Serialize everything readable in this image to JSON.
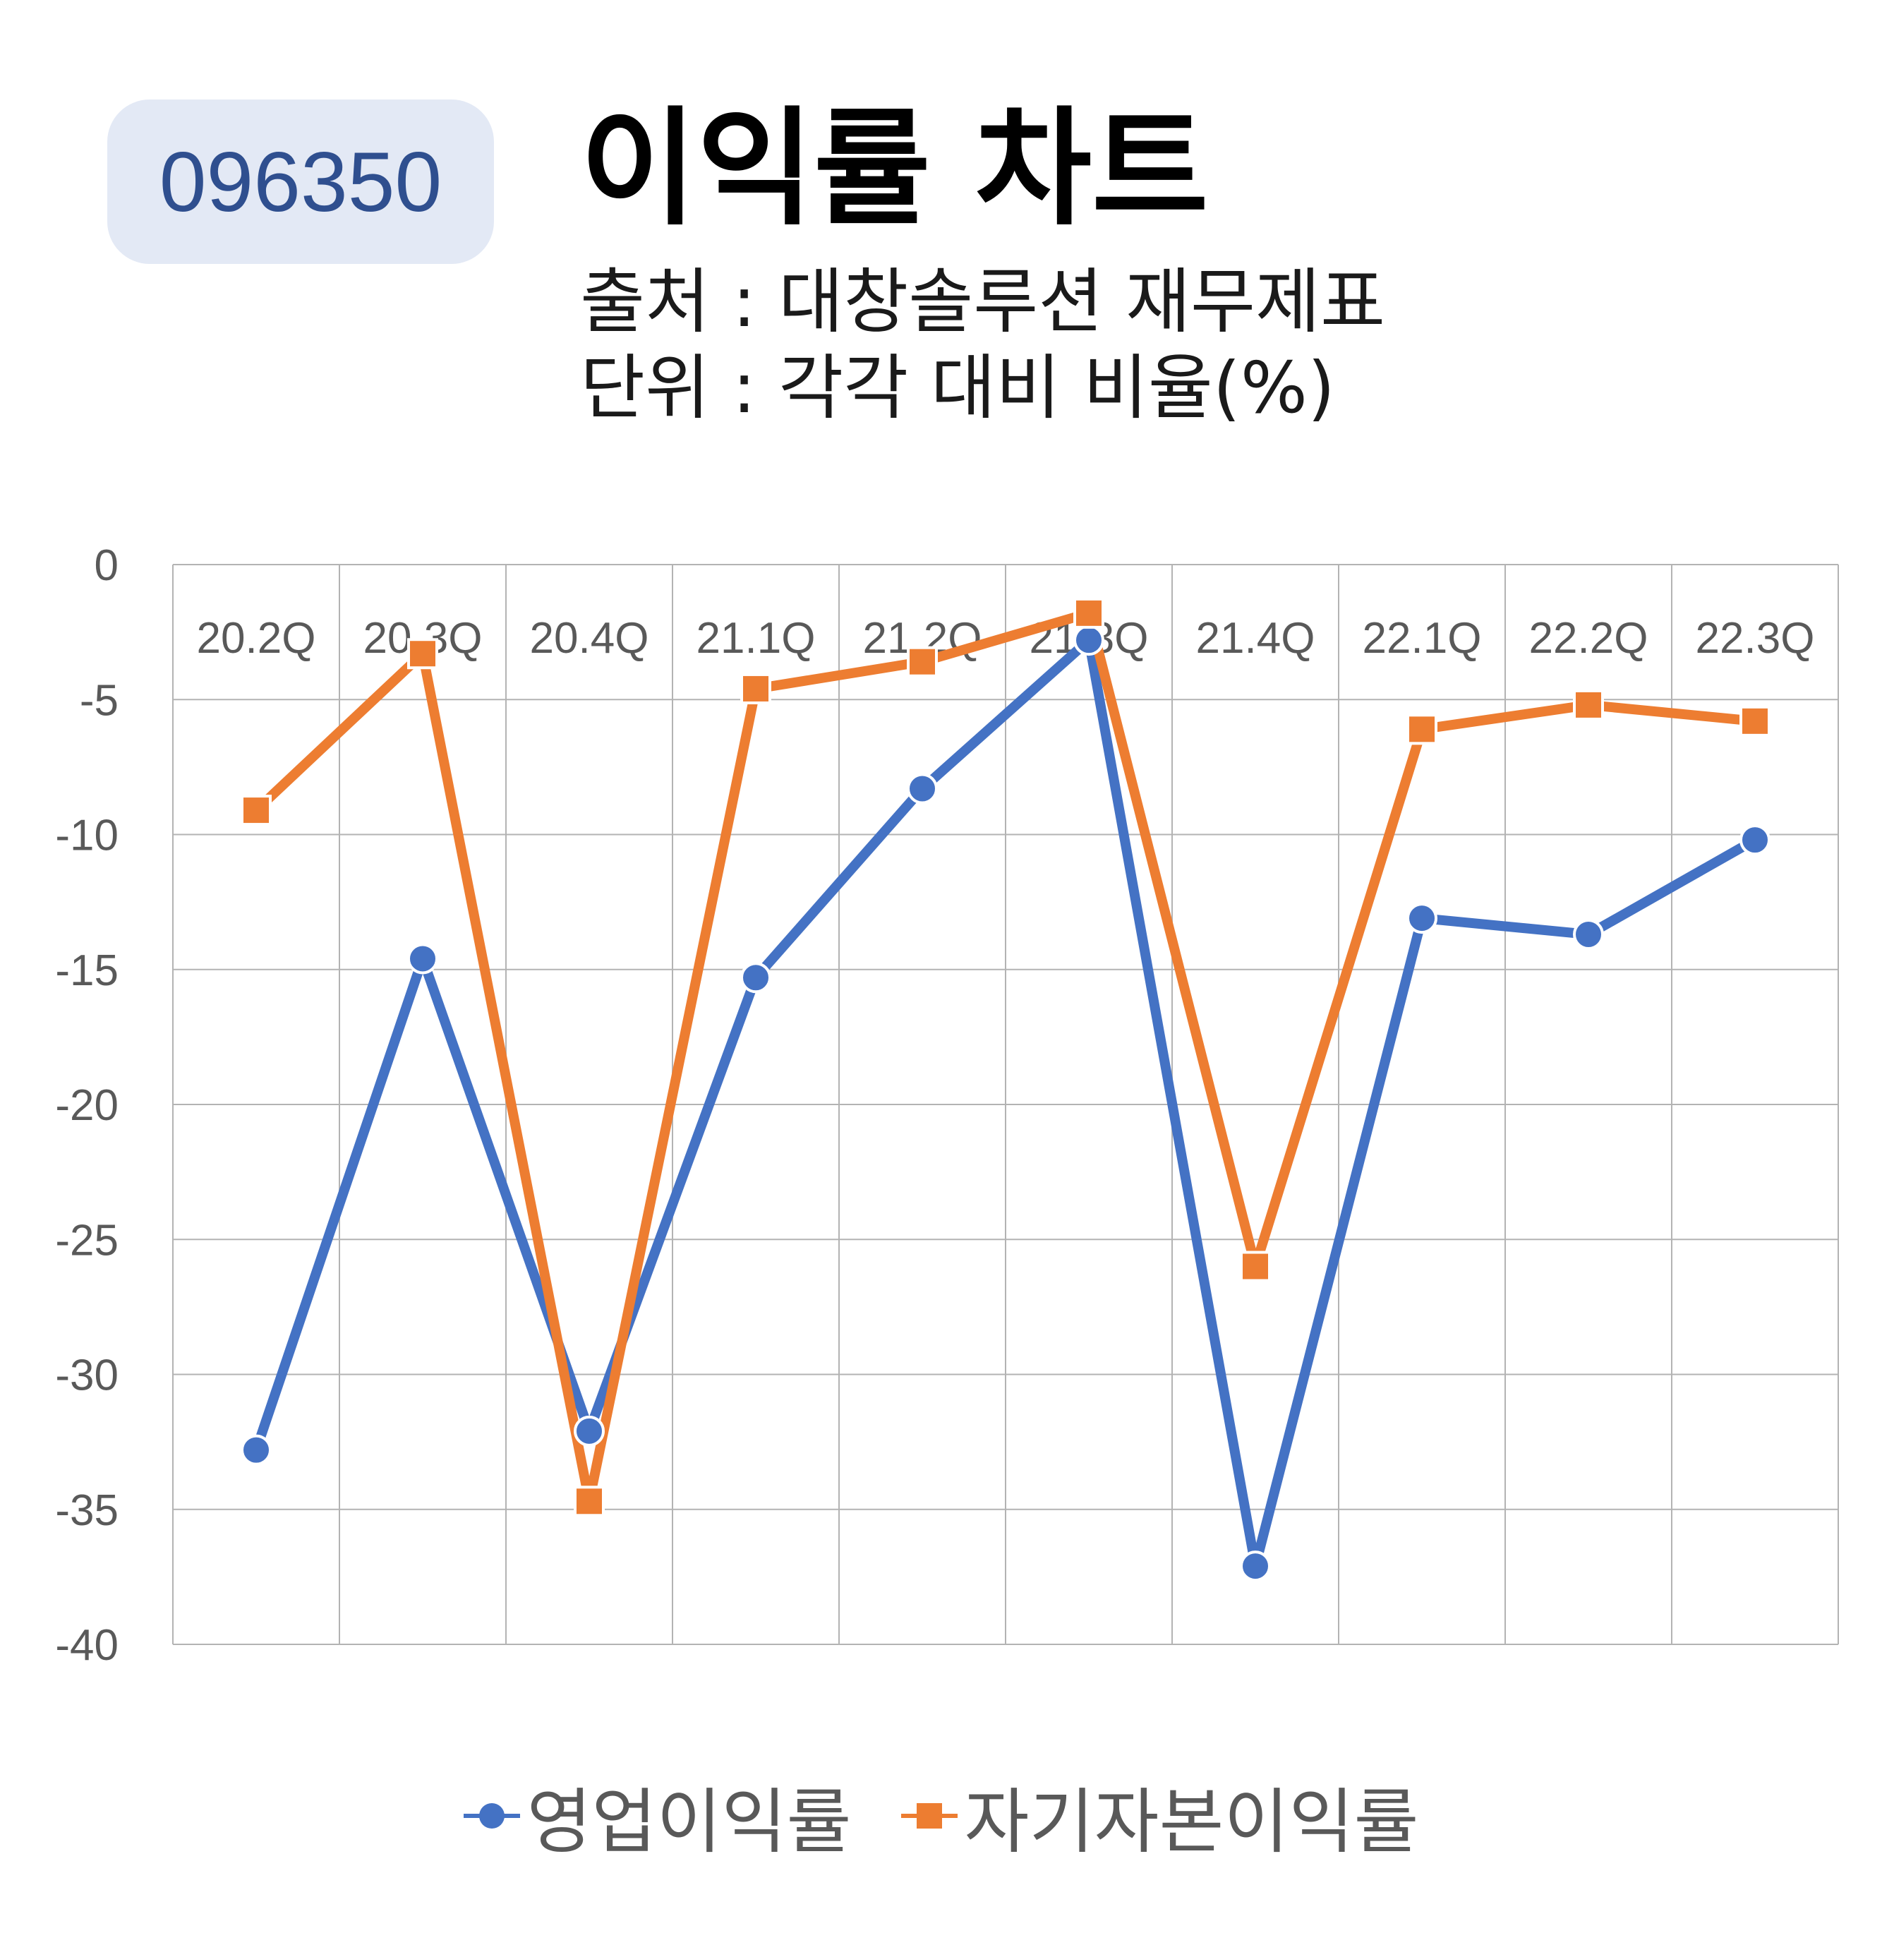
{
  "header": {
    "code": "096350",
    "title": "이익률 차트",
    "source": "출처 : 대창솔루션 재무제표",
    "unit": "단위 : 각각 대비 비율(%)"
  },
  "colors": {
    "series1": "#4472c4",
    "series2": "#ed7d31",
    "badge_bg": "#e3e9f5",
    "badge_text": "#2f4f8f",
    "grid": "#b3b3b3"
  },
  "chart_data": {
    "type": "line",
    "categories": [
      "20.2Q",
      "20.3Q",
      "20.4Q",
      "21.1Q",
      "21.2Q",
      "21.3Q",
      "21.4Q",
      "22.1Q",
      "22.2Q",
      "22.3Q"
    ],
    "series": [
      {
        "name": "영업이익률",
        "marker": "circle",
        "values": [
          -32.8,
          -14.6,
          -32.1,
          -15.3,
          -8.3,
          -2.8,
          -37.1,
          -13.1,
          -13.7,
          -10.2
        ]
      },
      {
        "name": "자기자본이익률",
        "marker": "square",
        "values": [
          -9.1,
          -3.3,
          -34.7,
          -4.6,
          -3.6,
          -1.8,
          -26.0,
          -6.1,
          -5.2,
          -5.8
        ]
      }
    ],
    "ylim": [
      -40,
      0
    ],
    "yticks": [
      "0",
      "-5",
      "-10",
      "-15",
      "-20",
      "-25",
      "-30",
      "-35",
      "-40"
    ],
    "xaxis_position": "top",
    "grid": true,
    "legend": "bottom"
  }
}
